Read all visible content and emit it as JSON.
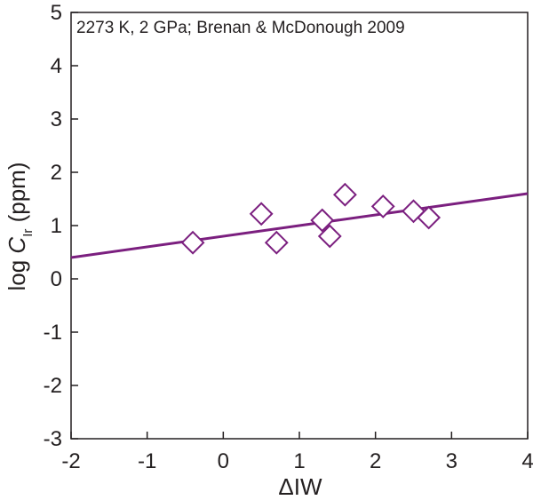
{
  "chart_data": {
    "type": "scatter",
    "annotation": "2273 K, 2 GPa; Brenan & McDonough 2009",
    "xlabel": "ΔIW",
    "ylabel": {
      "prefix": "log ",
      "var": "C",
      "sub": "Ir",
      "suffix": " (ppm)"
    },
    "xlim": [
      -2,
      4
    ],
    "ylim": [
      -3,
      5
    ],
    "xticks": [
      -2,
      -1,
      0,
      1,
      2,
      3,
      4
    ],
    "yticks": [
      -3,
      -2,
      -1,
      0,
      1,
      2,
      3,
      4,
      5
    ],
    "xtick_labels": [
      "-2",
      "-1",
      "0",
      "1",
      "2",
      "3",
      "4"
    ],
    "ytick_labels": [
      "-3",
      "-2",
      "-1",
      "0",
      "1",
      "2",
      "3",
      "4",
      "5"
    ],
    "grid": false,
    "series": [
      {
        "name": "data",
        "marker": "open-diamond",
        "color": "#7b1f7f",
        "x": [
          -0.4,
          0.5,
          0.7,
          1.3,
          1.4,
          1.6,
          2.1,
          2.5,
          2.7
        ],
        "y": [
          0.68,
          1.22,
          0.68,
          1.1,
          0.8,
          1.58,
          1.36,
          1.27,
          1.15
        ]
      }
    ],
    "fit_line": {
      "name": "fit",
      "color": "#7b1f7f",
      "x": [
        -2,
        4
      ],
      "y": [
        0.4,
        1.6
      ]
    }
  }
}
